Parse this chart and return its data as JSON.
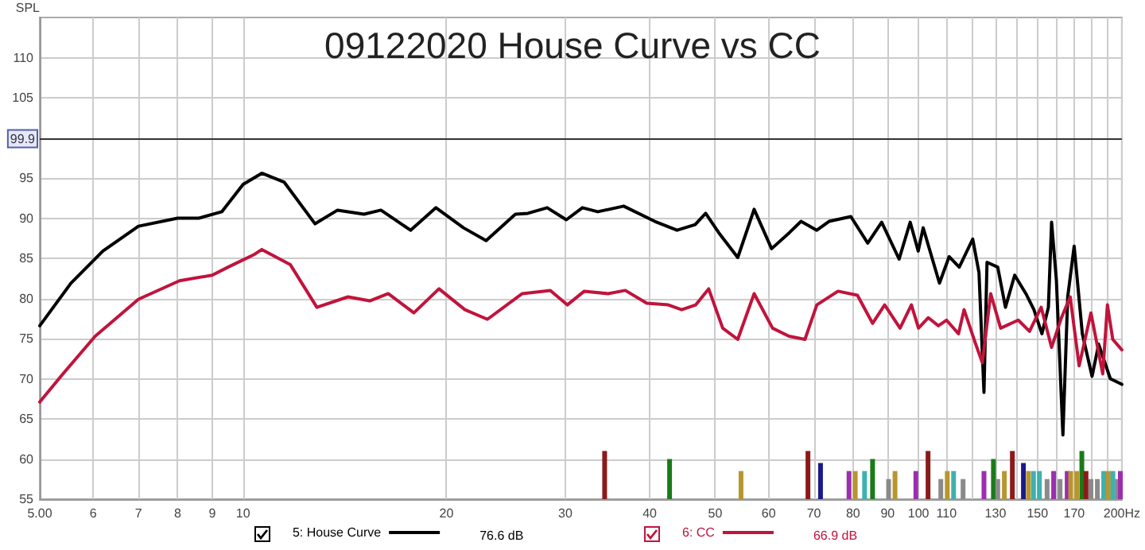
{
  "chart_data": {
    "type": "line",
    "title": "09122020 House Curve vs CC",
    "ylabel": "SPL",
    "log": "x",
    "xlim": [
      5,
      200
    ],
    "ylim": [
      55,
      115
    ],
    "xticks": [
      {
        "value": 5,
        "label": "5.00"
      },
      6,
      7,
      8,
      9,
      10,
      20,
      30,
      40,
      50,
      60,
      70,
      80,
      90,
      100,
      110,
      {
        "value": 120,
        "label": null
      },
      130,
      {
        "value": 140,
        "label": null
      },
      150,
      {
        "value": 160,
        "label": null
      },
      170,
      {
        "value": 180,
        "label": null
      },
      {
        "value": 190,
        "label": null
      },
      {
        "value": 200,
        "label": "200Hz"
      }
    ],
    "yticks": [
      55,
      60,
      65,
      70,
      75,
      80,
      85,
      90,
      95,
      {
        "value": 100,
        "label": null
      },
      105,
      110
    ],
    "grid": true,
    "legend": "bottom",
    "marker": "none",
    "line_style": "solid",
    "ref_lines": [
      {
        "axis": "y",
        "value": 99.9,
        "label": "99.9",
        "color": "#333333"
      }
    ],
    "annotations": [
      "76.6 dB",
      "66.9 dB"
    ],
    "series": [
      {
        "name": "5: House Curve",
        "color": "#000000",
        "x": [
          5,
          5.56,
          6.2,
          7,
          8,
          8.6,
          9.3,
          10,
          10.66,
          11.5,
          12.78,
          13.8,
          15.1,
          16,
          17.7,
          19.3,
          21.2,
          22.9,
          25.3,
          26.4,
          28.2,
          30.1,
          31.8,
          33.5,
          36.6,
          40.7,
          43.9,
          46.7,
          48.4,
          50.6,
          54,
          57.1,
          60.6,
          64.4,
          67,
          70.7,
          73.7,
          79.4,
          84.1,
          88.2,
          93.6,
          97.2,
          99.9,
          101.6,
          107.4,
          111,
          114.9,
          120.3,
          122.9,
          125,
          126.3,
          131,
          134.5,
          138.8,
          144.2,
          148.2,
          152.3,
          155.7,
          157.4,
          160,
          163.6,
          166.3,
          170,
          174.8,
          180.7,
          184.8,
          192.3,
          200
        ],
        "values": [
          76.6,
          81.9,
          85.9,
          89,
          90,
          90,
          90.8,
          94.2,
          95.6,
          94.5,
          89.3,
          91,
          90.5,
          91,
          88.5,
          91.3,
          88.8,
          87.2,
          90.5,
          90.6,
          91.3,
          89.8,
          91.3,
          90.8,
          91.5,
          89.6,
          88.5,
          89.2,
          90.6,
          88.2,
          85.1,
          91.1,
          86.2,
          88.2,
          89.6,
          88.5,
          89.6,
          90.2,
          86.9,
          89.5,
          84.9,
          89.5,
          85.9,
          88.8,
          81.9,
          85.2,
          83.9,
          87.4,
          83.2,
          68.3,
          84.5,
          83.9,
          78.9,
          82.9,
          80.6,
          78.6,
          75.6,
          78.9,
          89.5,
          82.3,
          63,
          80.2,
          86.5,
          75.6,
          70.3,
          74.3,
          70,
          69.3
        ]
      },
      {
        "name": "6: CC",
        "color": "#c0143c",
        "x": [
          5,
          5.41,
          6.04,
          7,
          8.05,
          9,
          9.5,
          10.4,
          10.66,
          11.75,
          12.86,
          14.3,
          15.4,
          16.4,
          17.9,
          19.5,
          21.3,
          23,
          25.9,
          28.5,
          30.2,
          32,
          34.7,
          36.8,
          39.6,
          42.6,
          44.6,
          46.8,
          48.9,
          51.3,
          54,
          57.1,
          60.8,
          64.3,
          67.9,
          70.7,
          76,
          81.2,
          85.5,
          89.1,
          93.9,
          97.6,
          100,
          103.4,
          107,
          110,
          114.6,
          116.8,
          121.2,
          124.3,
          127.9,
          132.3,
          140.5,
          146,
          151.9,
          157.4,
          162.8,
          167.7,
          172.9,
          180,
          187.4,
          190.4,
          193.9,
          200
        ],
        "values": [
          67.1,
          70.6,
          75.3,
          79.9,
          82.2,
          82.9,
          83.9,
          85.5,
          86.1,
          84.2,
          78.9,
          80.2,
          79.7,
          80.6,
          78.2,
          81.2,
          78.6,
          77.4,
          80.6,
          81,
          79.2,
          80.9,
          80.6,
          81,
          79.4,
          79.2,
          78.6,
          79.2,
          81.2,
          76.3,
          74.9,
          80.6,
          76.3,
          75.3,
          74.9,
          79.2,
          80.9,
          80.4,
          76.9,
          79.2,
          76.3,
          79.2,
          76.3,
          77.6,
          76.6,
          77.3,
          75.6,
          78.6,
          74.6,
          72,
          80.6,
          76.3,
          77.3,
          75.9,
          78.9,
          73.9,
          77.6,
          80.2,
          71.6,
          78.2,
          70.6,
          79.2,
          74.9,
          73.6
        ]
      },
      {
        "type": "bar",
        "x": [
          34.3,
          42.8,
          54.6,
          68.6,
          71.6,
          78.9,
          80.6,
          83.2,
          85.5,
          90.3,
          92.3,
          99.1,
          103.3,
          107.9,
          110.3,
          112.7,
          116.4,
          125,
          129.1,
          131,
          134,
          137.7,
          143,
          145.5,
          148,
          151,
          155,
          158.5,
          162,
          166,
          168,
          171.5,
          174.5,
          177,
          180,
          184,
          188,
          191,
          194,
          197,
          199
        ],
        "values": [
          61,
          60,
          58.5,
          61,
          59.5,
          58.5,
          58.5,
          58.5,
          60,
          57.5,
          58.5,
          58.5,
          61,
          57.5,
          58.5,
          58.5,
          57.5,
          58.5,
          60,
          57.5,
          58.5,
          61,
          59.5,
          58.5,
          58.5,
          58.5,
          57.5,
          58.5,
          57.5,
          58.5,
          58.5,
          58.5,
          61,
          58.5,
          57.5,
          57.5,
          58.5,
          58.5,
          58.5,
          57.5,
          58.5
        ],
        "colors": [
          "#8b1a1a",
          "#1a7a1a",
          "#b8962e",
          "#8b1a1a",
          "#1a1a8b",
          "#9b2fae",
          "#b8962e",
          "#3fb0b0",
          "#1a7a1a",
          "#8a8a8a",
          "#b8962e",
          "#9b2fae",
          "#8b1a1a",
          "#8a8a8a",
          "#b8962e",
          "#3fb0b0",
          "#8a8a8a",
          "#9b2fae",
          "#1a7a1a",
          "#8a8a8a",
          "#b8962e",
          "#8b1a1a",
          "#1a1a8b",
          "#b8962e",
          "#3fb0b0",
          "#3fb0b0",
          "#8a8a8a",
          "#9b2fae",
          "#8a8a8a",
          "#9b2fae",
          "#b8962e",
          "#b8962e",
          "#1a7a1a",
          "#8b1a1a",
          "#8a8a8a",
          "#8a8a8a",
          "#3fb0b0",
          "#b8962e",
          "#3fb0b0",
          "#8a8a8a",
          "#9b2fae"
        ]
      }
    ]
  }
}
